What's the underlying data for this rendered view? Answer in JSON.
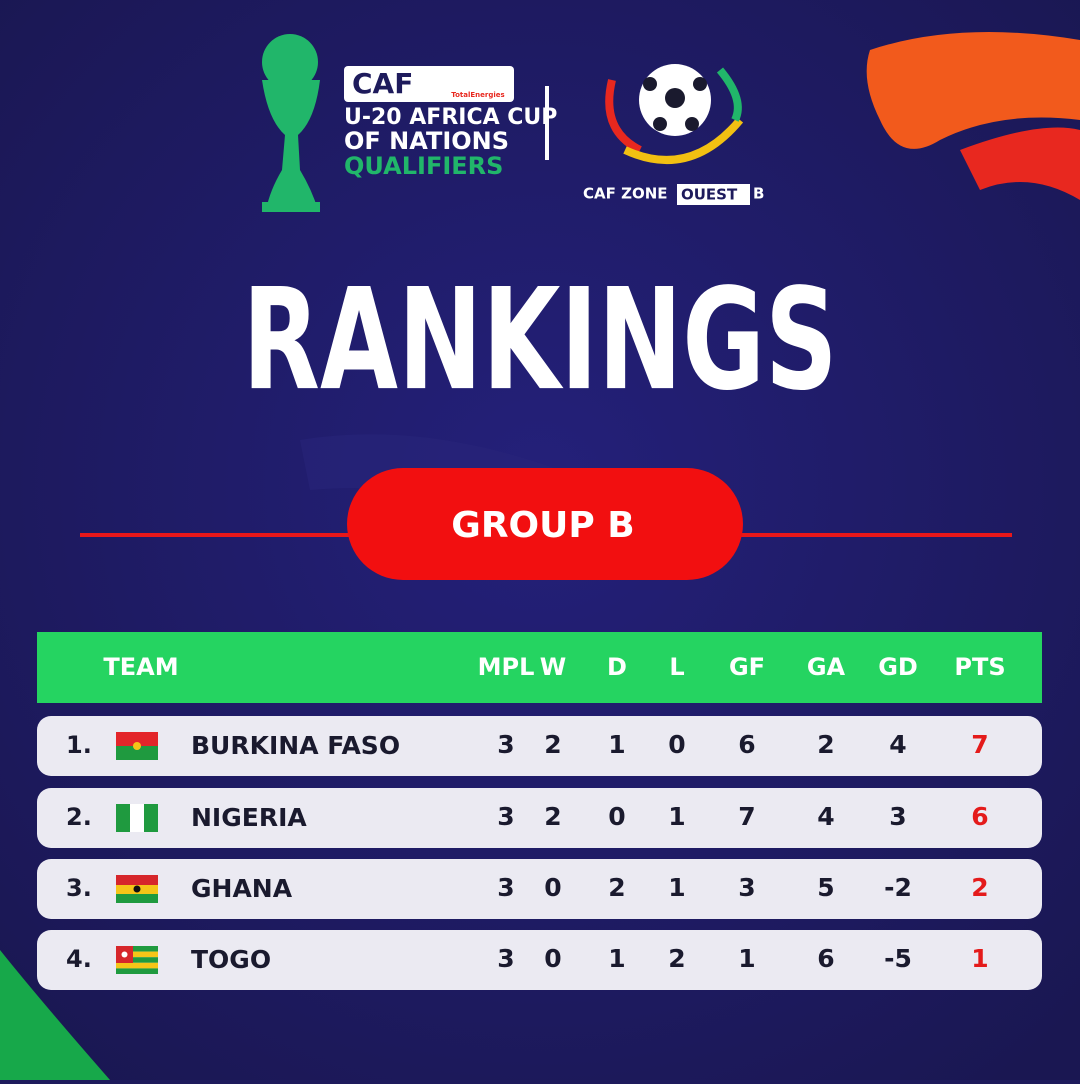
{
  "header": {
    "caf": "CAF",
    "sponsor": "TotalEnergies",
    "competition": [
      "U-20 AFRICA CUP",
      "OF NATIONS",
      "QUALIFIERS"
    ],
    "zone": "CAF ZONE",
    "zone_highlight": "OUEST",
    "zone_letter": "B"
  },
  "title": "RANKINGS",
  "group": "GROUP B",
  "table": {
    "columns": [
      "TEAM",
      "MPL",
      "W",
      "D",
      "L",
      "GF",
      "GA",
      "GD",
      "PTS"
    ],
    "rows": [
      [
        "1.",
        "BURKINA FASO",
        3,
        2,
        1,
        0,
        6,
        2,
        4,
        7
      ],
      [
        "2.",
        "NIGERIA",
        3,
        2,
        0,
        1,
        7,
        4,
        3,
        6
      ],
      [
        "3.",
        "GHANA",
        3,
        0,
        2,
        1,
        3,
        5,
        -2,
        2
      ],
      [
        "4.",
        "TOGO",
        3,
        0,
        1,
        2,
        1,
        6,
        -5,
        1
      ]
    ]
  }
}
